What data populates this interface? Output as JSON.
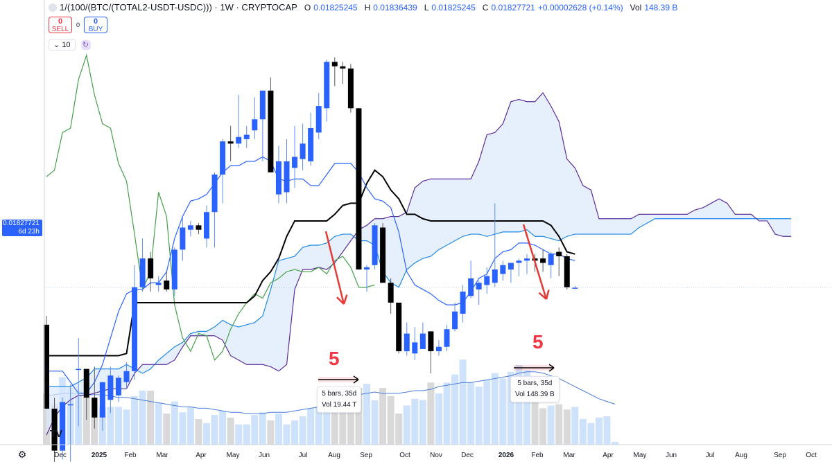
{
  "header": {
    "symbol": "1/(100/(BTC/(TOTAL2-USDT-USDC))) · 1W · CRYPTOCAP",
    "open_label": "O",
    "open": "0.01825245",
    "high_label": "H",
    "high": "0.01836439",
    "low_label": "L",
    "low": "0.01825245",
    "close_label": "C",
    "close": "0.01827721",
    "change": "+0.00002628 (+0.14%)",
    "vol_label": "Vol",
    "vol": "148.39 B"
  },
  "trade": {
    "sell_value": "0",
    "sell_label": "SELL",
    "spread": "0",
    "buy_value": "0",
    "buy_label": "BUY"
  },
  "controls": {
    "count": "⌄ 10",
    "refresh_icon": "↻"
  },
  "price_tag": {
    "price": "0.01827721",
    "countdown": "6d 23h"
  },
  "annotations": {
    "measure1": {
      "number": "5",
      "line1": "5 bars, 35d",
      "line2": "Vol 19.44 T"
    },
    "measure2": {
      "number": "5",
      "line1": "5 bars, 35d",
      "line2": "Vol 148.39 B"
    }
  },
  "settings_icon": "⚙",
  "logo_text": "TV",
  "colors": {
    "up": "#2962ff",
    "down": "#000000",
    "conversion": "#2962ff",
    "base": "#000000",
    "lagging": "#43a047",
    "spanA": "#1e88e5",
    "spanB": "#5b2c9f",
    "cloud": "#dbe9fb",
    "volume_up": "#cfe2fb",
    "volume_down": "#d9d9d9",
    "vol_ma": "#4a7bdc",
    "arrow": "#e53935"
  },
  "chart_data": {
    "type": "candlestick",
    "x_axis_labels": [
      "Dec",
      "2025",
      "Feb",
      "Mar",
      "Apr",
      "May",
      "Jun",
      "Jul",
      "Aug",
      "Sep",
      "Oct",
      "Nov",
      "Dec",
      "2026",
      "Feb",
      "Mar",
      "Apr",
      "May",
      "Jun",
      "Jul",
      "Aug",
      "Sep",
      "Oct"
    ],
    "candles": [
      {
        "o": 0.0166,
        "h": 0.017,
        "l": 0.0128,
        "c": 0.0128
      },
      {
        "o": 0.0128,
        "h": 0.0133,
        "l": 0.0104,
        "c": 0.0109
      },
      {
        "o": 0.0109,
        "h": 0.0133,
        "l": 0.0105,
        "c": 0.0131
      },
      {
        "o": 0.013,
        "h": 0.0139,
        "l": 0.0104,
        "c": 0.013
      },
      {
        "o": 0.0146,
        "h": 0.016,
        "l": 0.012,
        "c": 0.0146
      },
      {
        "o": 0.0146,
        "h": 0.0146,
        "l": 0.0123,
        "c": 0.0133
      },
      {
        "o": 0.0133,
        "h": 0.0147,
        "l": 0.0119,
        "c": 0.0124
      },
      {
        "o": 0.0124,
        "h": 0.014,
        "l": 0.0118,
        "c": 0.014
      },
      {
        "o": 0.0132,
        "h": 0.0147,
        "l": 0.0126,
        "c": 0.0143
      },
      {
        "o": 0.0134,
        "h": 0.0143,
        "l": 0.0131,
        "c": 0.0142
      },
      {
        "o": 0.014,
        "h": 0.0149,
        "l": 0.0137,
        "c": 0.0145
      },
      {
        "o": 0.0145,
        "h": 0.0193,
        "l": 0.0141,
        "c": 0.0183
      },
      {
        "o": 0.0183,
        "h": 0.0205,
        "l": 0.0181,
        "c": 0.0196
      },
      {
        "o": 0.0196,
        "h": 0.0199,
        "l": 0.0181,
        "c": 0.0187
      },
      {
        "o": 0.0184,
        "h": 0.0188,
        "l": 0.0181,
        "c": 0.0185
      },
      {
        "o": 0.0186,
        "h": 0.019,
        "l": 0.0181,
        "c": 0.0182
      },
      {
        "o": 0.0182,
        "h": 0.0201,
        "l": 0.0179,
        "c": 0.02
      },
      {
        "o": 0.02,
        "h": 0.0215,
        "l": 0.0195,
        "c": 0.021
      },
      {
        "o": 0.0209,
        "h": 0.0213,
        "l": 0.0206,
        "c": 0.0211
      },
      {
        "o": 0.0211,
        "h": 0.0212,
        "l": 0.0207,
        "c": 0.0209
      },
      {
        "o": 0.0205,
        "h": 0.022,
        "l": 0.0201,
        "c": 0.0217
      },
      {
        "o": 0.0217,
        "h": 0.0235,
        "l": 0.0201,
        "c": 0.0234
      },
      {
        "o": 0.0234,
        "h": 0.025,
        "l": 0.0221,
        "c": 0.0249
      },
      {
        "o": 0.0249,
        "h": 0.0256,
        "l": 0.024,
        "c": 0.0248
      },
      {
        "o": 0.0248,
        "h": 0.027,
        "l": 0.0246,
        "c": 0.0251
      },
      {
        "o": 0.025,
        "h": 0.0256,
        "l": 0.0246,
        "c": 0.0252
      },
      {
        "o": 0.0254,
        "h": 0.0269,
        "l": 0.025,
        "c": 0.0259
      },
      {
        "o": 0.0259,
        "h": 0.0271,
        "l": 0.024,
        "c": 0.0272
      },
      {
        "o": 0.0272,
        "h": 0.0278,
        "l": 0.0235,
        "c": 0.0235
      },
      {
        "o": 0.0225,
        "h": 0.0247,
        "l": 0.0221,
        "c": 0.024
      },
      {
        "o": 0.0226,
        "h": 0.025,
        "l": 0.0221,
        "c": 0.024
      },
      {
        "o": 0.0237,
        "h": 0.0256,
        "l": 0.0228,
        "c": 0.0242
      },
      {
        "o": 0.0241,
        "h": 0.0257,
        "l": 0.0236,
        "c": 0.0248
      },
      {
        "o": 0.024,
        "h": 0.0262,
        "l": 0.0238,
        "c": 0.0255
      },
      {
        "o": 0.0253,
        "h": 0.0271,
        "l": 0.025,
        "c": 0.0265
      },
      {
        "o": 0.0264,
        "h": 0.0286,
        "l": 0.0258,
        "c": 0.0285
      },
      {
        "o": 0.0285,
        "h": 0.0287,
        "l": 0.0274,
        "c": 0.0283
      },
      {
        "o": 0.0283,
        "h": 0.0285,
        "l": 0.0275,
        "c": 0.0282
      },
      {
        "o": 0.0282,
        "h": 0.0284,
        "l": 0.0262,
        "c": 0.0264
      },
      {
        "o": 0.0264,
        "h": 0.0264,
        "l": 0.0191,
        "c": 0.0191
      },
      {
        "o": 0.0191,
        "h": 0.0193,
        "l": 0.0181,
        "c": 0.0192
      },
      {
        "o": 0.0193,
        "h": 0.0212,
        "l": 0.0191,
        "c": 0.0211
      },
      {
        "o": 0.021,
        "h": 0.0212,
        "l": 0.0185,
        "c": 0.0185
      },
      {
        "o": 0.0185,
        "h": 0.0187,
        "l": 0.0171,
        "c": 0.0176
      },
      {
        "o": 0.0176,
        "h": 0.0176,
        "l": 0.0153,
        "c": 0.0154
      },
      {
        "o": 0.0154,
        "h": 0.0167,
        "l": 0.0152,
        "c": 0.0162
      },
      {
        "o": 0.0153,
        "h": 0.0165,
        "l": 0.015,
        "c": 0.0158
      },
      {
        "o": 0.0155,
        "h": 0.0167,
        "l": 0.0155,
        "c": 0.0162
      },
      {
        "o": 0.0163,
        "h": 0.0163,
        "l": 0.0144,
        "c": 0.0154
      },
      {
        "o": 0.0154,
        "h": 0.0159,
        "l": 0.0152,
        "c": 0.0156
      },
      {
        "o": 0.0156,
        "h": 0.0166,
        "l": 0.0154,
        "c": 0.0164
      },
      {
        "o": 0.0164,
        "h": 0.0176,
        "l": 0.0163,
        "c": 0.0172
      },
      {
        "o": 0.0171,
        "h": 0.0184,
        "l": 0.0167,
        "c": 0.0181
      },
      {
        "o": 0.0179,
        "h": 0.0195,
        "l": 0.0178,
        "c": 0.0187
      },
      {
        "o": 0.0182,
        "h": 0.0186,
        "l": 0.0175,
        "c": 0.0185
      },
      {
        "o": 0.0184,
        "h": 0.0192,
        "l": 0.018,
        "c": 0.0188
      },
      {
        "o": 0.0185,
        "h": 0.0221,
        "l": 0.0183,
        "c": 0.0191
      },
      {
        "o": 0.0189,
        "h": 0.0195,
        "l": 0.0186,
        "c": 0.0193
      },
      {
        "o": 0.0191,
        "h": 0.0194,
        "l": 0.0185,
        "c": 0.0194
      },
      {
        "o": 0.0194,
        "h": 0.0196,
        "l": 0.0188,
        "c": 0.0195
      },
      {
        "o": 0.0195,
        "h": 0.0198,
        "l": 0.0189,
        "c": 0.0196
      },
      {
        "o": 0.0196,
        "h": 0.0198,
        "l": 0.019,
        "c": 0.0195
      },
      {
        "o": 0.0196,
        "h": 0.02,
        "l": 0.019,
        "c": 0.0194
      },
      {
        "o": 0.0193,
        "h": 0.0199,
        "l": 0.0187,
        "c": 0.0198
      },
      {
        "o": 0.0199,
        "h": 0.0201,
        "l": 0.0188,
        "c": 0.0197
      },
      {
        "o": 0.0197,
        "h": 0.0198,
        "l": 0.0182,
        "c": 0.0183
      },
      {
        "o": 0.01825245,
        "h": 0.01836439,
        "l": 0.01825245,
        "c": 0.01827721
      }
    ],
    "conversion_line": [
      0.0145,
      0.0145,
      0.0145,
      0.014,
      0.0135,
      0.0135,
      0.014,
      0.0148,
      0.016,
      0.0172,
      0.018,
      0.0182,
      0.0182,
      0.0185,
      0.0185,
      0.019,
      0.0205,
      0.0215,
      0.0222,
      0.0223,
      0.0225,
      0.023,
      0.0235,
      0.0238,
      0.0238,
      0.024,
      0.024,
      0.0242,
      0.024,
      0.0232,
      0.0231,
      0.0232,
      0.0232,
      0.0229,
      0.0229,
      0.0234,
      0.0239,
      0.0239,
      0.0239,
      0.0235,
      0.0228,
      0.0223,
      0.0222,
      0.0219,
      0.0208,
      0.019,
      0.0184,
      0.0182,
      0.018,
      0.0177,
      0.0175,
      0.0175,
      0.0176,
      0.0181,
      0.0187,
      0.0189,
      0.0196,
      0.0199,
      0.02,
      0.0203,
      0.0203,
      0.0202,
      0.02,
      0.0198,
      0.0198,
      0.0196,
      0.0195
    ],
    "base_line": [
      0.0152,
      0.0152,
      0.0152,
      0.0152,
      0.0152,
      0.0152,
      0.0152,
      0.0152,
      0.0152,
      0.0152,
      0.0153,
      0.0176,
      0.0176,
      0.0176,
      0.0176,
      0.0176,
      0.0176,
      0.0176,
      0.0176,
      0.0176,
      0.0176,
      0.0176,
      0.0176,
      0.0176,
      0.0176,
      0.0176,
      0.0179,
      0.0186,
      0.019,
      0.0196,
      0.0206,
      0.0213,
      0.0213,
      0.0213,
      0.0213,
      0.0213,
      0.0216,
      0.022,
      0.0221,
      0.0221,
      0.023,
      0.0236,
      0.0233,
      0.0227,
      0.0223,
      0.0216,
      0.0216,
      0.0214,
      0.0213,
      0.0213,
      0.0213,
      0.0213,
      0.0213,
      0.0213,
      0.0213,
      0.0213,
      0.0213,
      0.0213,
      0.0213,
      0.0213,
      0.0213,
      0.0213,
      0.0213,
      0.0211,
      0.0206,
      0.0199,
      0.0198
    ],
    "lagging_span": [
      0.0233,
      0.0236,
      0.0253,
      0.0255,
      0.0277,
      0.0288,
      0.027,
      0.0257,
      0.0255,
      0.0239,
      0.0231,
      0.0207,
      0.0182,
      0.019,
      0.0226,
      0.0215,
      0.0175,
      0.016,
      0.0154,
      0.0162,
      0.0161,
      0.015,
      0.0154,
      0.0164,
      0.0171,
      0.0176,
      0.018,
      0.0178,
      0.0185,
      0.0187,
      0.019,
      0.0191,
      0.019,
      0.019,
      0.0192,
      0.0189,
      0.0195,
      0.0197,
      0.0192,
      0.0183,
      0.0183,
      0.0184
    ],
    "span_a": [
      0.0138,
      0.0138,
      0.0138,
      0.0138,
      0.014,
      0.0142,
      0.0146,
      0.0146,
      0.0146,
      0.0146,
      0.0148,
      0.0146,
      0.0144,
      0.0146,
      0.015,
      0.0153,
      0.0156,
      0.0158,
      0.0162,
      0.0163,
      0.0163,
      0.0165,
      0.0168,
      0.0166,
      0.0165,
      0.0166,
      0.0167,
      0.017,
      0.0182,
      0.0195,
      0.0196,
      0.0197,
      0.0201,
      0.0202,
      0.0202,
      0.0203,
      0.0206,
      0.0207,
      0.0207,
      0.0204,
      0.0204,
      0.0202,
      0.019,
      0.0185,
      0.0183,
      0.0191,
      0.0194,
      0.0196,
      0.0197,
      0.02,
      0.0202,
      0.0204,
      0.0206,
      0.0207,
      0.0207,
      0.0206,
      0.0207,
      0.0208,
      0.0208,
      0.0208,
      0.0209,
      0.0206,
      0.0206,
      0.0205,
      0.0204,
      0.0206,
      0.0207,
      0.0207,
      0.0207,
      0.0207,
      0.0207,
      0.0207,
      0.0207,
      0.0207,
      0.021,
      0.0212,
      0.0214,
      0.0214,
      0.0214,
      0.0214,
      0.0214,
      0.0214,
      0.0214,
      0.0214,
      0.0214,
      0.0214,
      0.0214,
      0.0214,
      0.0214,
      0.0214,
      0.0214,
      0.0214,
      0.0214,
      0.0214
    ],
    "span_b": [
      0.0116,
      0.0124,
      0.0129,
      0.0132,
      0.0134,
      0.0134,
      0.0135,
      0.0136,
      0.0137,
      0.0137,
      0.0137,
      0.0144,
      0.0148,
      0.0148,
      0.0148,
      0.0148,
      0.015,
      0.0156,
      0.0161,
      0.0161,
      0.0161,
      0.0161,
      0.0159,
      0.0152,
      0.015,
      0.0148,
      0.0148,
      0.0148,
      0.0147,
      0.0145,
      0.0148,
      0.0182,
      0.0191,
      0.0191,
      0.0192,
      0.0191,
      0.0194,
      0.0199,
      0.0204,
      0.0209,
      0.0211,
      0.0214,
      0.0214,
      0.0215,
      0.0215,
      0.0217,
      0.0228,
      0.0231,
      0.0232,
      0.0232,
      0.0232,
      0.0232,
      0.0232,
      0.0232,
      0.024,
      0.0252,
      0.0253,
      0.0257,
      0.0267,
      0.0268,
      0.0267,
      0.0267,
      0.0271,
      0.0265,
      0.0258,
      0.0241,
      0.0237,
      0.0229,
      0.0227,
      0.0214,
      0.0214,
      0.0214,
      0.0214,
      0.0214,
      0.0216,
      0.0216,
      0.0216,
      0.0216,
      0.0216,
      0.0216,
      0.0216,
      0.0218,
      0.0219,
      0.0221,
      0.0223,
      0.0221,
      0.0216,
      0.0216,
      0.0216,
      0.0213,
      0.0213,
      0.0207,
      0.0206,
      0.0206
    ],
    "volume": [
      38,
      30,
      50,
      42,
      40,
      35,
      34,
      28,
      28,
      28,
      26,
      36,
      40,
      40,
      31,
      23,
      32,
      24,
      28,
      19,
      16,
      22,
      25,
      20,
      15,
      15,
      22,
      24,
      18,
      23,
      15,
      18,
      21,
      27,
      28,
      36,
      43,
      38,
      26,
      42,
      45,
      33,
      42,
      36,
      23,
      29,
      34,
      33,
      46,
      38,
      46,
      52,
      63,
      46,
      43,
      48,
      53,
      49,
      54,
      59,
      55,
      38,
      27,
      29,
      30,
      26,
      28,
      19,
      16,
      20,
      21,
      2
    ],
    "volume_ma": [
      36,
      37,
      38,
      38,
      38,
      37,
      37,
      37,
      36,
      35,
      35,
      34,
      33,
      32,
      31,
      30,
      29,
      28,
      28,
      27,
      27,
      26,
      25,
      24,
      24,
      23,
      23,
      23,
      24,
      24,
      24,
      25,
      26,
      27,
      28,
      30,
      32,
      34,
      36,
      37,
      38,
      39,
      38,
      38,
      38,
      39,
      40,
      40,
      41,
      43,
      44,
      45,
      46,
      46,
      47,
      48,
      49,
      50,
      51,
      53,
      54,
      54,
      53,
      51,
      49,
      46,
      43,
      40,
      37,
      34,
      32,
      30
    ],
    "current_price": 0.01827721,
    "current_volume": "148.39 B"
  }
}
